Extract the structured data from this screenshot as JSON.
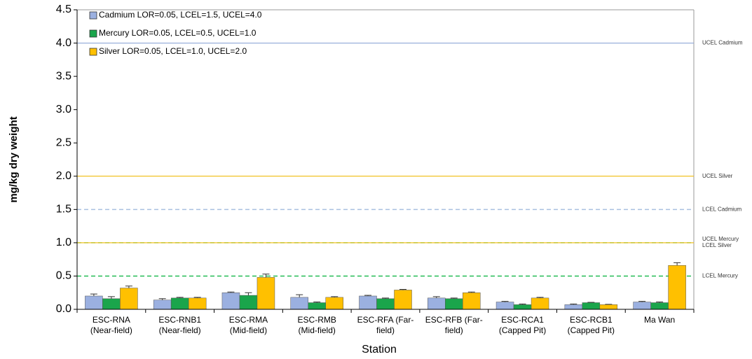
{
  "chart_data": {
    "type": "bar",
    "x_label": "Station",
    "y_label": "mg/kg dry weight",
    "categories": [
      "ESC-RNA\n(Near-field)",
      "ESC-RNB1\n(Near-field)",
      "ESC-RMA\n(Mid-field)",
      "ESC-RMB\n(Mid-field)",
      "ESC-RFA (Far-\nfield)",
      "ESC-RFB (Far-\nfield)",
      "ESC-RCA1\n(Capped Pit)",
      "ESC-RCB1\n(Capped Pit)",
      "Ma Wan"
    ],
    "series": [
      {
        "name": "Cadmium LOR=0.05, LCEL=1.5, UCEL=4.0",
        "color": "#9bb0e0",
        "values": [
          0.2,
          0.14,
          0.25,
          0.18,
          0.2,
          0.17,
          0.11,
          0.07,
          0.11
        ],
        "errors": [
          0.03,
          0.02,
          0.01,
          0.04,
          0.01,
          0.02,
          0.01,
          0.01,
          0.01
        ]
      },
      {
        "name": "Mercury LOR=0.05, LCEL=0.5, UCEL=1.0",
        "color": "#1aa54b",
        "values": [
          0.16,
          0.17,
          0.21,
          0.1,
          0.16,
          0.16,
          0.07,
          0.1,
          0.1
        ],
        "errors": [
          0.03,
          0.01,
          0.04,
          0.01,
          0.01,
          0.01,
          0.01,
          0.005,
          0.01
        ]
      },
      {
        "name": "Silver LOR=0.05, LCEL=1.0, UCEL=2.0",
        "color": "#ffc000",
        "values": [
          0.32,
          0.17,
          0.48,
          0.18,
          0.29,
          0.25,
          0.17,
          0.07,
          0.66
        ],
        "errors": [
          0.03,
          0.01,
          0.05,
          0.01,
          0.01,
          0.01,
          0.01,
          0.005,
          0.04
        ]
      }
    ],
    "reference_lines": [
      {
        "label": "UCEL Cadmium",
        "value": 4.0,
        "color": "#8fa8d8",
        "dashed": false
      },
      {
        "label": "UCEL Silver",
        "value": 2.0,
        "color": "#f0c020",
        "dashed": false
      },
      {
        "label": "LCEL Cadmium",
        "value": 1.5,
        "color": "#a8c0e0",
        "dashed": true
      },
      {
        "label": "UCEL Mercury",
        "value": 1.0,
        "color": "#33cc66",
        "dashed": true
      },
      {
        "label": "LCEL Silver",
        "value": 1.0,
        "color": "#f0c020",
        "dashed": false
      },
      {
        "label": "LCEL Mercury",
        "value": 0.5,
        "color": "#22bb55",
        "dashed": true
      }
    ],
    "ylim": [
      0,
      4.5
    ],
    "yticks": [
      {
        "value": 0,
        "label": "0.0"
      },
      0.5,
      {
        "value": 1,
        "label": "1.0"
      },
      1.5,
      {
        "value": 2,
        "label": "2.0"
      },
      2.5,
      {
        "value": 3,
        "label": "3.0"
      },
      3.5,
      {
        "value": 4,
        "label": "4.0"
      },
      4.5
    ],
    "legend": "upper left"
  }
}
